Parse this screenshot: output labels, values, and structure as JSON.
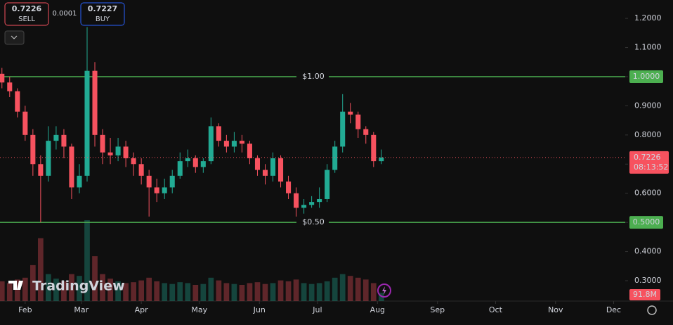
{
  "header": {
    "sell_price": "0.7226",
    "sell_label": "SELL",
    "spread": "0.0001",
    "buy_price": "0.7227",
    "buy_label": "BUY"
  },
  "brand": "TradingView",
  "chart_data": {
    "type": "candlestick",
    "x": [
      20,
      24,
      28,
      32,
      36,
      40,
      44,
      48,
      52,
      56,
      60,
      64,
      68,
      72,
      76,
      80,
      84,
      88,
      92,
      96,
      100,
      104,
      108,
      112,
      116,
      120,
      124,
      128,
      132,
      136,
      140,
      144,
      148,
      152,
      156,
      160,
      164,
      168,
      172,
      176,
      180,
      184,
      188,
      192,
      196,
      200,
      204,
      208,
      212,
      216
    ],
    "open": [
      1.01,
      0.98,
      0.95,
      0.88,
      0.8,
      0.7,
      0.66,
      0.78,
      0.8,
      0.76,
      0.62,
      0.66,
      1.02,
      0.8,
      0.74,
      0.73,
      0.76,
      0.72,
      0.7,
      0.66,
      0.62,
      0.6,
      0.62,
      0.66,
      0.71,
      0.72,
      0.69,
      0.71,
      0.83,
      0.78,
      0.76,
      0.78,
      0.77,
      0.72,
      0.68,
      0.66,
      0.72,
      0.64,
      0.6,
      0.55,
      0.56,
      0.57,
      0.58,
      0.68,
      0.76,
      0.88,
      0.87,
      0.82,
      0.8,
      0.71
    ],
    "high": [
      1.03,
      1.0,
      0.96,
      0.9,
      0.82,
      0.73,
      0.83,
      0.83,
      0.82,
      0.77,
      0.7,
      1.17,
      1.05,
      0.82,
      0.79,
      0.79,
      0.78,
      0.74,
      0.72,
      0.68,
      0.65,
      0.65,
      0.68,
      0.74,
      0.75,
      0.73,
      0.72,
      0.86,
      0.84,
      0.8,
      0.81,
      0.8,
      0.78,
      0.73,
      0.7,
      0.74,
      0.73,
      0.66,
      0.62,
      0.58,
      0.59,
      0.62,
      0.7,
      0.78,
      0.94,
      0.91,
      0.88,
      0.83,
      0.81,
      0.75
    ],
    "low": [
      0.96,
      0.93,
      0.86,
      0.78,
      0.66,
      0.5,
      0.64,
      0.75,
      0.72,
      0.58,
      0.6,
      0.64,
      0.76,
      0.7,
      0.7,
      0.71,
      0.69,
      0.66,
      0.63,
      0.52,
      0.57,
      0.58,
      0.6,
      0.65,
      0.69,
      0.67,
      0.67,
      0.7,
      0.76,
      0.74,
      0.74,
      0.74,
      0.7,
      0.66,
      0.63,
      0.64,
      0.62,
      0.58,
      0.52,
      0.53,
      0.55,
      0.55,
      0.57,
      0.67,
      0.74,
      0.84,
      0.79,
      0.77,
      0.69,
      0.7
    ],
    "close": [
      0.98,
      0.95,
      0.88,
      0.8,
      0.7,
      0.66,
      0.78,
      0.8,
      0.76,
      0.62,
      0.66,
      1.02,
      0.8,
      0.74,
      0.73,
      0.76,
      0.72,
      0.7,
      0.66,
      0.62,
      0.6,
      0.62,
      0.66,
      0.71,
      0.72,
      0.69,
      0.71,
      0.83,
      0.78,
      0.76,
      0.78,
      0.77,
      0.72,
      0.68,
      0.66,
      0.72,
      0.64,
      0.6,
      0.55,
      0.56,
      0.57,
      0.58,
      0.68,
      0.76,
      0.88,
      0.87,
      0.82,
      0.8,
      0.71,
      0.7226
    ],
    "volume": [
      220,
      200,
      240,
      260,
      400,
      700,
      300,
      250,
      220,
      300,
      280,
      900,
      500,
      300,
      250,
      220,
      200,
      210,
      230,
      260,
      220,
      200,
      190,
      210,
      200,
      180,
      190,
      260,
      230,
      200,
      190,
      180,
      200,
      210,
      190,
      200,
      230,
      220,
      240,
      200,
      190,
      200,
      220,
      260,
      300,
      280,
      260,
      240,
      200,
      91.8
    ],
    "volume_label": "91.8M",
    "up_color": "#22ab94",
    "down_color": "#f7525f",
    "xlim": [
      19,
      342
    ],
    "ylim": [
      0.23,
      1.263
    ],
    "xticks": [
      {
        "value": 32,
        "label": "Feb"
      },
      {
        "value": 61,
        "label": "Mar"
      },
      {
        "value": 92,
        "label": "Apr"
      },
      {
        "value": 122,
        "label": "May"
      },
      {
        "value": 153,
        "label": "Jun"
      },
      {
        "value": 183,
        "label": "Jul"
      },
      {
        "value": 214,
        "label": "Aug"
      },
      {
        "value": 245,
        "label": "Sep"
      },
      {
        "value": 275,
        "label": "Oct"
      },
      {
        "value": 306,
        "label": "Nov"
      },
      {
        "value": 336,
        "label": "Dec"
      }
    ],
    "yticks": [
      {
        "value": 0.3,
        "label": "0.3000"
      },
      {
        "value": 0.4,
        "label": "0.4000"
      },
      {
        "value": 0.5,
        "label": "0.5000"
      },
      {
        "value": 0.6,
        "label": "0.6000"
      },
      {
        "value": 0.7,
        "label": "0.7000"
      },
      {
        "value": 0.8,
        "label": "0.8000"
      },
      {
        "value": 0.9,
        "label": "0.9000"
      },
      {
        "value": 1.0,
        "label": "1.0000"
      },
      {
        "value": 1.1,
        "label": "1.1000"
      },
      {
        "value": 1.2,
        "label": "1.2000"
      }
    ],
    "hlines": [
      {
        "value": 1.0,
        "label": "$1.00",
        "axis_label": "1.0000",
        "color": "#4caf50"
      },
      {
        "value": 0.5,
        "label": "$0.50",
        "axis_label": "0.5000",
        "color": "#4caf50"
      }
    ],
    "last_price": {
      "value": 0.7226,
      "label": "0.7226",
      "countdown": "08:13:52"
    }
  }
}
